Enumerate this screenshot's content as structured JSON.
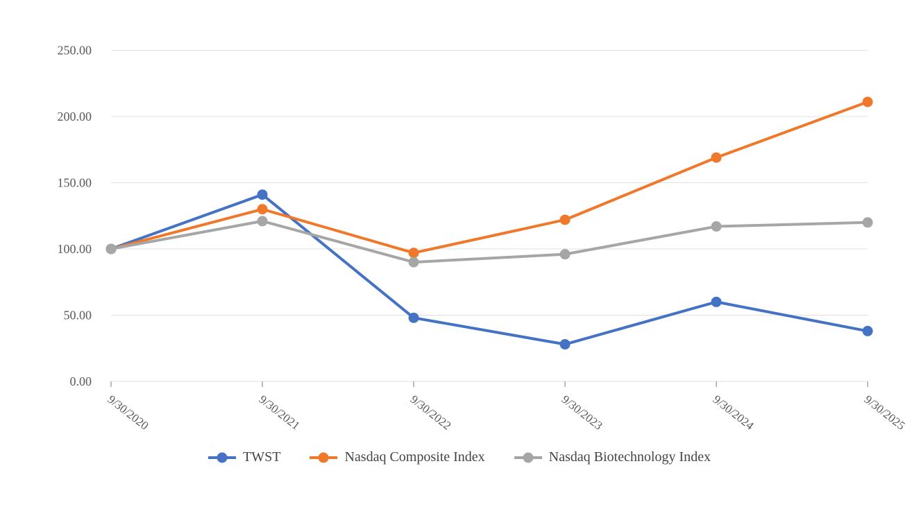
{
  "chart_data": {
    "type": "line",
    "title": "",
    "xlabel": "",
    "ylabel": "",
    "categories": [
      "9/30/2020",
      "9/30/2021",
      "9/30/2022",
      "9/30/2023",
      "9/30/2024",
      "9/30/2025"
    ],
    "series": [
      {
        "name": "TWST",
        "color": "#4472C4",
        "values": [
          100,
          141,
          48,
          28,
          60,
          38
        ]
      },
      {
        "name": "Nasdaq Composite Index",
        "color": "#F0782A",
        "values": [
          100,
          130,
          97,
          122,
          169,
          211
        ]
      },
      {
        "name": "Nasdaq Biotechnology Index",
        "color": "#A6A6A6",
        "values": [
          100,
          121,
          90,
          96,
          117,
          120
        ]
      }
    ],
    "ylim": [
      0,
      250
    ],
    "y_tick_step": 50,
    "y_tick_labels": [
      "0.00",
      "50.00",
      "100.00",
      "150.00",
      "200.00",
      "250.00"
    ],
    "grid": true,
    "legend_position": "bottom-center",
    "colors": {
      "gridline": "#E2E2E2",
      "tick": "#A6A6A6",
      "axis_label": "#595959",
      "legend_text": "#444444"
    }
  }
}
